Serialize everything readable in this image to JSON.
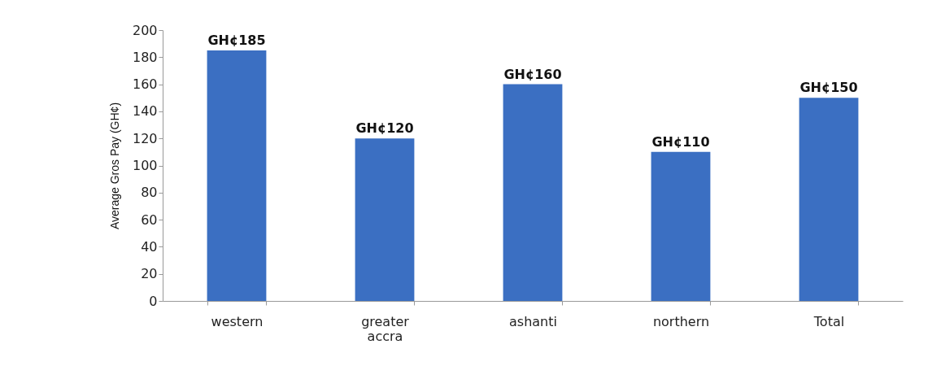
{
  "chart_data": {
    "type": "bar",
    "ylabel": "Average Gros Pay (GH¢)",
    "categories": [
      "western",
      "greater accra",
      "ashanti",
      "northern",
      "Total"
    ],
    "values": [
      185,
      120,
      160,
      110,
      150
    ],
    "value_labels": [
      "GH¢185",
      "GH¢120",
      "GH¢160",
      "GH¢110",
      "GH¢150"
    ],
    "color": "#3b6fc2",
    "ylim": [
      0,
      200
    ],
    "yticks": [
      0,
      20,
      40,
      60,
      80,
      100,
      120,
      140,
      160,
      180,
      200
    ],
    "grid": false
  }
}
